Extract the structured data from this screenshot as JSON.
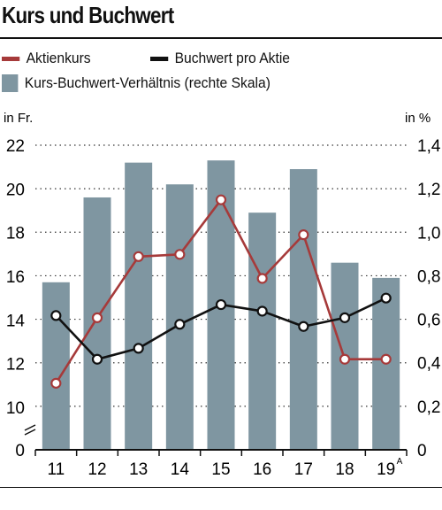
{
  "title": "Kurs und Buchwert",
  "legend": {
    "items": [
      {
        "label": "Aktienkurs",
        "color": "#a63a3a",
        "kind": "line"
      },
      {
        "label": "Buchwert pro Aktie",
        "color": "#111111",
        "kind": "line"
      },
      {
        "label": "Kurs-Buchwert-Verhältnis (rechte Skala)",
        "color": "#7f96a1",
        "kind": "box"
      }
    ]
  },
  "chart_data": {
    "type": "bar+line",
    "categories": [
      "11",
      "12",
      "13",
      "14",
      "15",
      "16",
      "17",
      "18",
      "19"
    ],
    "category_footnote": {
      "index": 8,
      "text": "A"
    },
    "left_axis": {
      "unit_label": "in Fr.",
      "range": [
        0,
        22
      ],
      "ticks": [
        "0",
        "10",
        "12",
        "14",
        "16",
        "18",
        "20",
        "22"
      ],
      "broken": true
    },
    "right_axis": {
      "unit_label": "in %",
      "range": [
        0,
        1.4
      ],
      "ticks": [
        "0",
        "0,2",
        "0,4",
        "0,6",
        "0,8",
        "1,0",
        "1,2",
        "1,4"
      ]
    },
    "grid": "dotted horizontal",
    "series": [
      {
        "name": "Kurs-Buchwert-Verhältnis (rechte Skala)",
        "type": "bar",
        "axis": "right",
        "color": "#7f96a1",
        "values": [
          0.77,
          1.16,
          1.32,
          1.22,
          1.33,
          1.09,
          1.29,
          0.86,
          0.79
        ]
      },
      {
        "name": "Aktienkurs",
        "type": "line",
        "axis": "left",
        "color": "#a63a3a",
        "values": [
          11.1,
          14.1,
          16.9,
          17.0,
          19.5,
          15.9,
          17.9,
          12.2,
          12.2
        ]
      },
      {
        "name": "Buchwert pro Aktie",
        "type": "line",
        "axis": "left",
        "color": "#111111",
        "values": [
          14.2,
          12.2,
          12.7,
          13.8,
          14.7,
          14.4,
          13.7,
          14.1,
          15.0
        ]
      }
    ]
  }
}
